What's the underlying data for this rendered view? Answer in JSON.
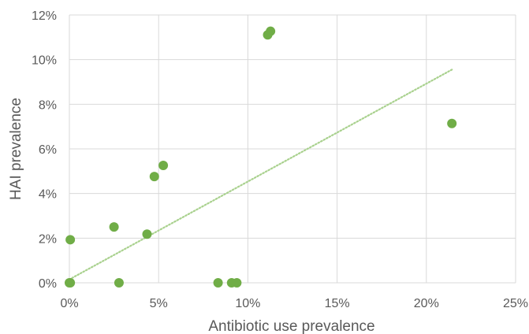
{
  "chart_data": {
    "type": "scatter",
    "title": "",
    "xlabel": "Antibiotic use prevalence",
    "ylabel": "HAI prevalence",
    "xlim": [
      0,
      0.25
    ],
    "ylim": [
      0,
      0.12
    ],
    "x_ticks": [
      0,
      0.05,
      0.1,
      0.15,
      0.2,
      0.25
    ],
    "x_tick_labels": [
      "0%",
      "5%",
      "10%",
      "15%",
      "20%",
      "25%"
    ],
    "y_ticks": [
      0,
      0.02,
      0.04,
      0.06,
      0.08,
      0.1,
      0.12
    ],
    "y_tick_labels": [
      "0%",
      "2%",
      "4%",
      "6%",
      "8%",
      "10%",
      "12%"
    ],
    "grid": true,
    "legend": "none",
    "series": [
      {
        "color": "#70AD47",
        "points": [
          {
            "x": 0.0,
            "y": 0.0
          },
          {
            "x": 0.0005,
            "y": 0.0
          },
          {
            "x": 0.0005,
            "y": 0.0193
          },
          {
            "x": 0.025,
            "y": 0.025
          },
          {
            "x": 0.0278,
            "y": 0.0
          },
          {
            "x": 0.0435,
            "y": 0.0218
          },
          {
            "x": 0.0476,
            "y": 0.0476
          },
          {
            "x": 0.0526,
            "y": 0.0526
          },
          {
            "x": 0.0833,
            "y": 0.0
          },
          {
            "x": 0.0909,
            "y": 0.0
          },
          {
            "x": 0.0938,
            "y": 0.0
          },
          {
            "x": 0.1111,
            "y": 0.1111
          },
          {
            "x": 0.1127,
            "y": 0.1127
          },
          {
            "x": 0.2143,
            "y": 0.0714
          }
        ]
      }
    ],
    "trendline": {
      "type": "linear",
      "color": "#A9D18E",
      "x_start": 0.0,
      "y_start": 0.0015,
      "x_end": 0.2143,
      "y_end": 0.0955
    }
  }
}
